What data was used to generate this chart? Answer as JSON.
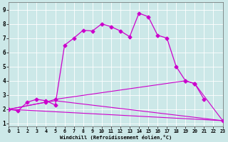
{
  "xlabel": "Windchill (Refroidissement éolien,°C)",
  "xlim": [
    0,
    23
  ],
  "ylim": [
    0.8,
    9.5
  ],
  "x_ticks": [
    0,
    1,
    2,
    3,
    4,
    5,
    6,
    7,
    8,
    9,
    10,
    11,
    12,
    13,
    14,
    15,
    16,
    17,
    18,
    19,
    20,
    21,
    22,
    23
  ],
  "y_ticks": [
    1,
    2,
    3,
    4,
    5,
    6,
    7,
    8,
    9
  ],
  "bg_color": "#cce8e8",
  "line_color": "#cc00cc",
  "main_x": [
    0,
    1,
    2,
    3,
    4,
    5,
    6,
    7,
    8,
    9,
    10,
    11,
    12,
    13,
    14,
    15,
    16,
    17,
    18,
    19,
    20,
    21
  ],
  "main_y": [
    2.0,
    1.9,
    2.5,
    2.7,
    2.6,
    2.3,
    6.5,
    7.0,
    7.55,
    7.5,
    8.0,
    7.8,
    7.5,
    7.1,
    8.75,
    8.5,
    7.2,
    7.0,
    5.0,
    4.0,
    3.8,
    2.7
  ],
  "line1_x": [
    0,
    23
  ],
  "line1_y": [
    2.0,
    1.2
  ],
  "line2_x": [
    0,
    4,
    5,
    23
  ],
  "line2_y": [
    2.0,
    2.5,
    2.6,
    1.2
  ],
  "line3_x": [
    0,
    4,
    5,
    19,
    20,
    23
  ],
  "line3_y": [
    2.0,
    2.5,
    2.7,
    4.0,
    3.8,
    1.2
  ]
}
